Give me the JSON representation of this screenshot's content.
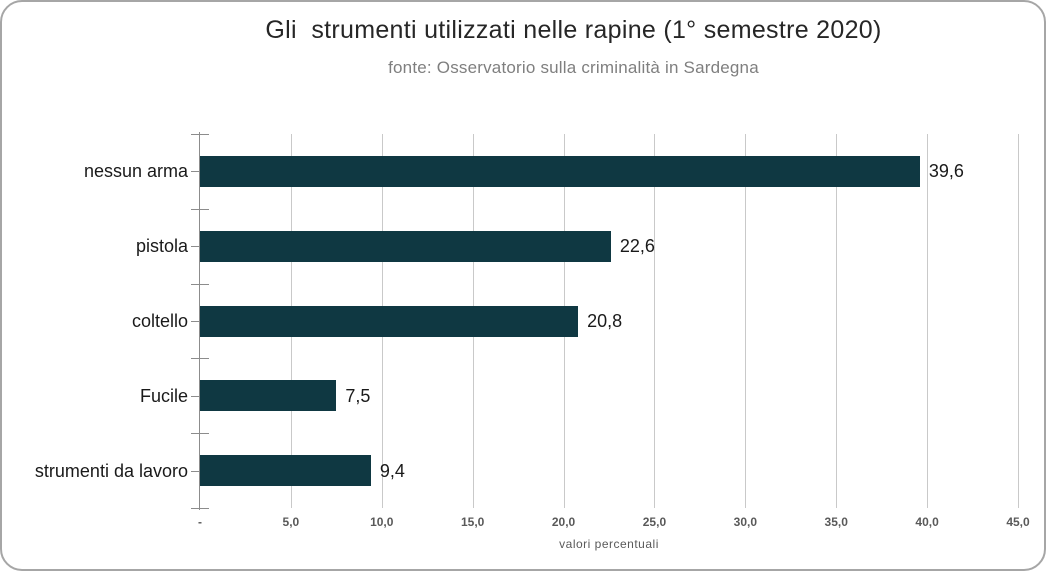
{
  "chart_data": {
    "type": "bar",
    "orientation": "horizontal",
    "title": "Gli  strumenti utilizzati nelle rapine (1° semestre 2020)",
    "subtitle": "fonte: Osservatorio sulla criminalità in Sardegna",
    "categories": [
      "nessun arma",
      "pistola",
      "coltello",
      "Fucile",
      "strumenti da lavoro"
    ],
    "values": [
      39.6,
      22.6,
      20.8,
      7.5,
      9.4
    ],
    "value_labels": [
      "39,6",
      "22,6",
      "20,8",
      "7,5",
      "9,4"
    ],
    "xlabel": "valori percentuali",
    "xlim": [
      0,
      45
    ],
    "x_ticks": [
      0,
      5,
      10,
      15,
      20,
      25,
      30,
      35,
      40,
      45
    ],
    "x_tick_labels": [
      "-",
      "5,0",
      "10,0",
      "15,0",
      "20,0",
      "25,0",
      "30,0",
      "35,0",
      "40,0",
      "45,0"
    ],
    "grid": true,
    "legend": false,
    "colors": {
      "bar": "#0f3842",
      "gridline": "#c9c9c9",
      "axis": "#8c8c8c",
      "title_text": "#262626",
      "subtitle_text": "#7f7f7f",
      "label_text": "#1a1a1a",
      "tick_text": "#595959",
      "frame_border": "#a6a6a6"
    }
  }
}
